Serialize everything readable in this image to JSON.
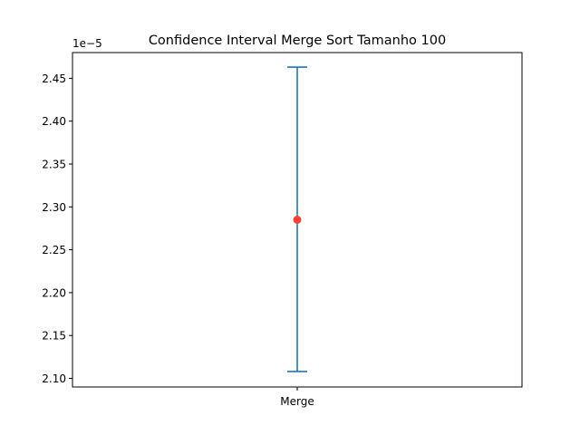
{
  "chart_data": {
    "type": "errorbar",
    "title": "Confidence Interval Merge Sort Tamanho 100",
    "xlabel": "",
    "ylabel": "",
    "y_offset_label": "1e−5",
    "categories": [
      "Merge"
    ],
    "mean": [
      2.285e-05
    ],
    "ci_lower": [
      2.108e-05
    ],
    "ci_upper": [
      2.463e-05
    ],
    "ylim": [
      2.09e-05,
      2.48e-05
    ],
    "yticks": [
      2.1e-05,
      2.15e-05,
      2.2e-05,
      2.25e-05,
      2.3e-05,
      2.35e-05,
      2.4e-05,
      2.45e-05
    ],
    "ytick_labels": [
      "2.10",
      "2.15",
      "2.20",
      "2.25",
      "2.30",
      "2.35",
      "2.40",
      "2.45"
    ],
    "grid": false,
    "colors": {
      "errorbar": "#1f77b4",
      "point": "#f44336",
      "axes": "#000000"
    }
  }
}
